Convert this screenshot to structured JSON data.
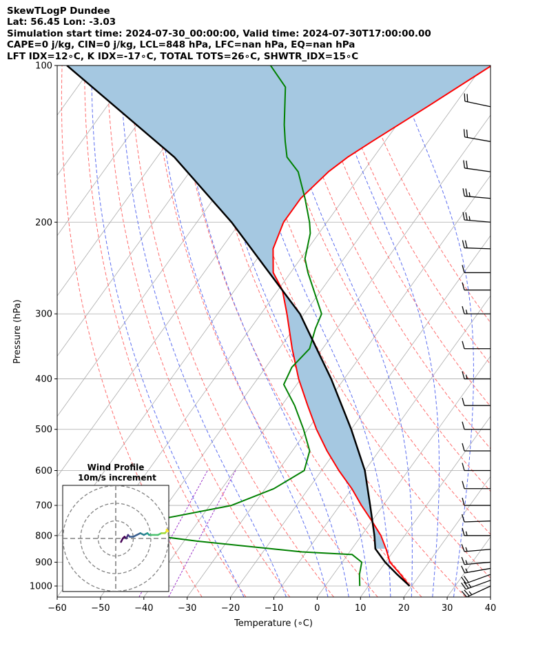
{
  "header": {
    "line1": "SkewTLogP Dundee",
    "line2": "Lat: 56.45   Lon: -3.03",
    "line3": "Simulation start time: 2024-07-30_00:00:00, Valid time: 2024-07-30T17:00:00.00",
    "line4": "CAPE=0 j/kg, CIN=0 j/kg, LCL=848 hPa, LFC=nan hPa, EQ=nan hPa",
    "line5": "LFT IDX=12∘C, K IDX=-17∘C, TOTAL TOTS=26∘C, SHWTR_IDX=15∘C"
  },
  "colors": {
    "temperature": "#ff0000",
    "dewpoint": "#008000",
    "parcel": "#000000",
    "cape_shade": "#a5c8e1",
    "dry_adiabat": "#ff6b6b",
    "moist_adiabat": "#5a6cf0",
    "mixing_ratio": "#9b30c8",
    "isotherm": "#aaaaaa"
  },
  "chart_data": {
    "type": "skew-t log-p",
    "title": "SkewTLogP Dundee",
    "xlabel": "Temperature (∘C)",
    "ylabel": "Pressure (hPa)",
    "xlim": [
      -60,
      40
    ],
    "ylim": [
      1050,
      100
    ],
    "x_ticks": [
      "−60",
      "−50",
      "−40",
      "−30",
      "−20",
      "−10",
      "0",
      "10",
      "20",
      "30",
      "40"
    ],
    "y_ticks": [
      1000,
      900,
      800,
      700,
      600,
      500,
      400,
      300,
      200,
      100
    ],
    "temperature_profile": {
      "name": "Temperature",
      "p": [
        1000,
        950,
        900,
        850,
        800,
        750,
        700,
        650,
        600,
        550,
        500,
        450,
        400,
        350,
        300,
        270,
        250,
        225,
        200,
        180,
        160,
        150,
        140,
        120,
        100
      ],
      "t": [
        19.5,
        15.5,
        11,
        8,
        4.5,
        0,
        -5,
        -10,
        -16,
        -22,
        -28,
        -34,
        -40.5,
        -47,
        -54,
        -59,
        -64,
        -68,
        -70,
        -70,
        -68,
        -66,
        -63,
        -56,
        -48
      ]
    },
    "dewpoint_profile": {
      "name": "Dewpoint",
      "p": [
        1000,
        950,
        900,
        870,
        860,
        820,
        800,
        780,
        760,
        700,
        650,
        600,
        550,
        500,
        450,
        410,
        380,
        350,
        320,
        300,
        250,
        235,
        210,
        200,
        180,
        160,
        150,
        140,
        130,
        110,
        100
      ],
      "t": [
        8,
        6,
        4.5,
        1,
        -11,
        -37,
        -48,
        -57,
        -54,
        -35,
        -28,
        -24,
        -26,
        -31,
        -37,
        -43,
        -44,
        -43,
        -45,
        -46,
        -56,
        -59,
        -62,
        -64,
        -69,
        -75,
        -80,
        -83,
        -86,
        -92,
        -99
      ]
    },
    "parcel_profile": {
      "name": "Parcel",
      "p": [
        1000,
        950,
        900,
        848,
        800,
        700,
        600,
        500,
        400,
        300,
        200,
        150,
        100
      ],
      "t": [
        19.5,
        14.7,
        9.9,
        5.4,
        3,
        -3,
        -10,
        -20,
        -33,
        -51,
        -82,
        -106,
        -146
      ]
    },
    "dry_adiabat_thetas_c": [
      -30,
      -20,
      -10,
      0,
      10,
      20,
      30,
      40,
      50,
      60,
      70,
      80,
      90,
      100
    ],
    "moist_adiabat_thetaw_c": [
      -20,
      -10,
      0,
      5,
      10,
      15,
      20,
      25,
      30
    ],
    "mixing_ratio_lines_gkg": [
      0.1,
      0.2
    ],
    "wind_barbs": {
      "p": [
        1000,
        975,
        950,
        925,
        900,
        850,
        800,
        750,
        700,
        650,
        600,
        550,
        500,
        450,
        400,
        350,
        300,
        270,
        250,
        225,
        200,
        180,
        160,
        140,
        120
      ],
      "speed_kt": [
        25,
        25,
        20,
        15,
        15,
        15,
        15,
        10,
        10,
        10,
        10,
        10,
        10,
        10,
        15,
        10,
        15,
        10,
        10,
        20,
        25,
        25,
        20,
        20,
        20
      ],
      "direction_deg": [
        245,
        250,
        250,
        260,
        265,
        265,
        270,
        268,
        270,
        270,
        270,
        270,
        270,
        270,
        270,
        270,
        270,
        270,
        270,
        272,
        275,
        275,
        278,
        280,
        282
      ]
    },
    "hodograph": {
      "title": "Wind Profile",
      "subtitle": "10m/s increment",
      "ring_spacing_ms": 10,
      "u_ms": [
        3,
        4,
        5,
        6,
        7,
        8,
        10,
        12,
        14,
        16,
        18,
        19,
        20,
        22,
        24,
        26,
        28,
        29,
        29,
        30
      ],
      "v_ms": [
        -2,
        0,
        1,
        0,
        2,
        1,
        1,
        2,
        3,
        2,
        3,
        2,
        2,
        2,
        2,
        3,
        3,
        4,
        5,
        4
      ]
    }
  }
}
